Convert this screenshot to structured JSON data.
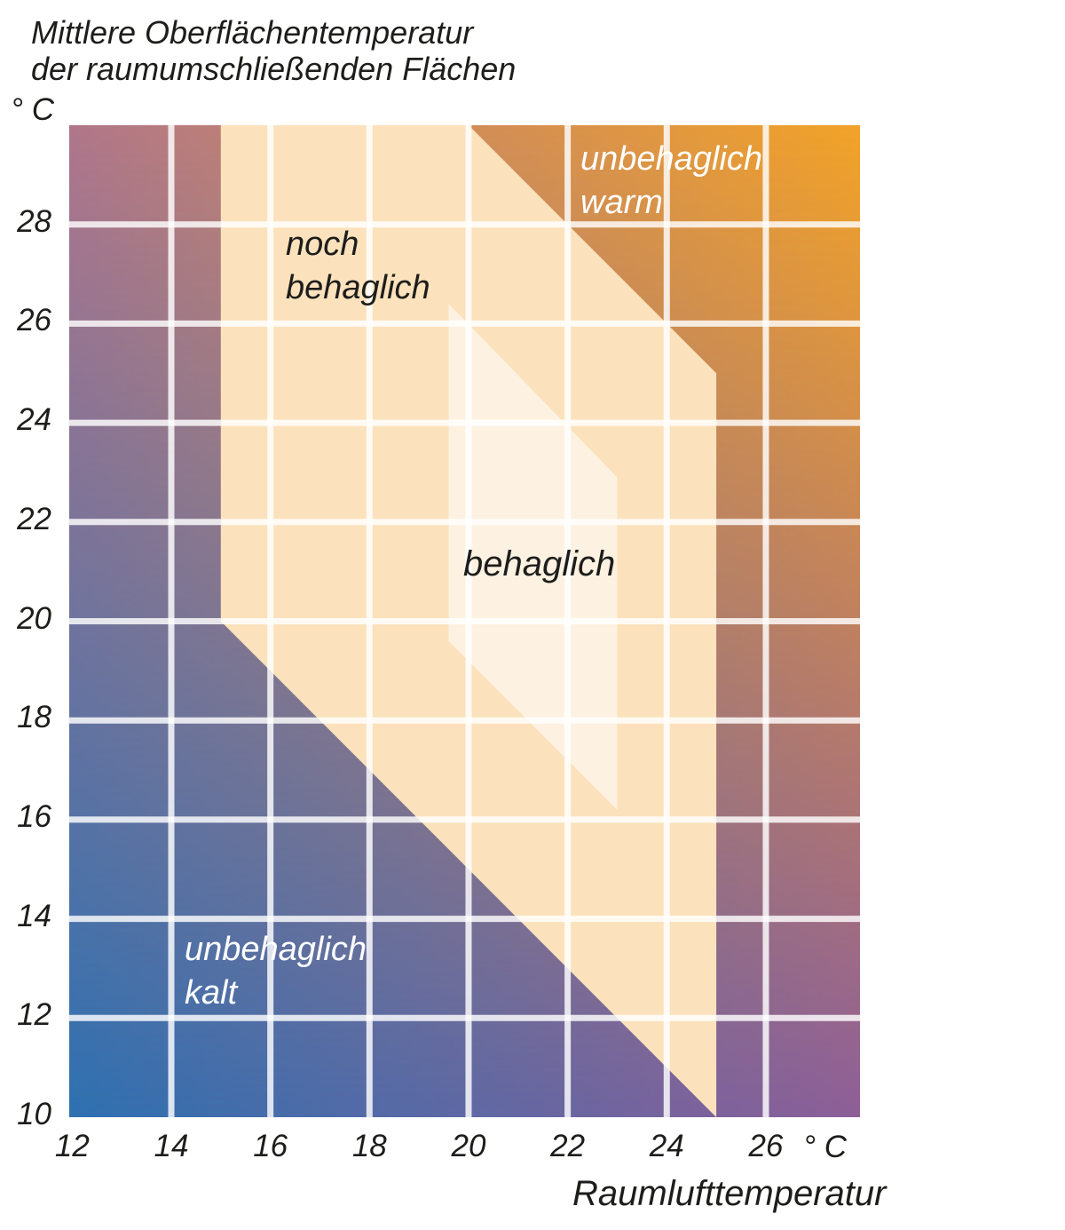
{
  "title": {
    "line1": "Mittlere Oberflächentemperatur",
    "line2": "der raumumschließenden Flächen"
  },
  "y_axis": {
    "unit": "° C",
    "ticks": [
      28,
      26,
      24,
      22,
      20,
      18,
      16,
      14,
      12,
      10
    ]
  },
  "x_axis": {
    "unit": "° C",
    "label": "Raumlufttemperatur",
    "ticks": [
      12,
      14,
      16,
      18,
      20,
      22,
      24,
      26
    ]
  },
  "zones": {
    "warm": {
      "line1": "unbehaglich",
      "line2": "warm",
      "color": "#ffffff"
    },
    "noch": {
      "line1": "noch",
      "line2": "behaglich",
      "color": "#1d1d1b"
    },
    "behaglich": {
      "label": "behaglich",
      "color": "#1d1d1b"
    },
    "kalt": {
      "line1": "unbehaglich",
      "line2": "kalt",
      "color": "#ffffff"
    }
  },
  "chart_data": {
    "type": "area",
    "title": "Mittlere Oberflächentemperatur der raumumschließenden Flächen",
    "xlabel": "Raumlufttemperatur",
    "ylabel": "Mittlere Oberflächentemperatur der raumumschließenden Flächen",
    "x_unit": "° C",
    "y_unit": "° C",
    "xlim": [
      11.94,
      27.9
    ],
    "ylim": [
      10,
      30
    ],
    "x_ticks": [
      12,
      14,
      16,
      18,
      20,
      22,
      24,
      26
    ],
    "y_ticks": [
      28,
      26,
      24,
      22,
      20,
      18,
      16,
      14,
      12,
      10
    ],
    "grid": {
      "on": true,
      "color": "#ffffff",
      "opacity": 0.82,
      "width": 7,
      "x_lines": [
        14,
        16,
        18,
        20,
        22,
        24,
        26
      ],
      "y_lines": [
        12,
        14,
        16,
        18,
        20,
        22,
        24,
        26,
        28
      ]
    },
    "background_gradient_corners": {
      "top_left": "#b0768a",
      "top_right": "#f2a327",
      "bottom_left": "#2e71b1",
      "bottom_right": "#8e5f98"
    },
    "polygons": [
      {
        "name": "noch-behaglich",
        "label": "noch behaglich",
        "fill": "#fbe2bc",
        "points": [
          [
            15,
            30
          ],
          [
            20,
            30
          ],
          [
            25,
            25
          ],
          [
            25,
            10
          ],
          [
            15,
            20
          ]
        ]
      },
      {
        "name": "behaglich",
        "label": "behaglich",
        "fill": "#fdf2e2",
        "points": [
          [
            19.6,
            26.4
          ],
          [
            23,
            22.9
          ],
          [
            23,
            16.2
          ],
          [
            19.6,
            19.6
          ]
        ]
      }
    ],
    "background_zones": [
      {
        "name": "unbehaglich-warm",
        "label": "unbehaglich warm",
        "region": "upper right of comfort band"
      },
      {
        "name": "unbehaglich-kalt",
        "label": "unbehaglich kalt",
        "region": "lower left of comfort band"
      }
    ]
  }
}
